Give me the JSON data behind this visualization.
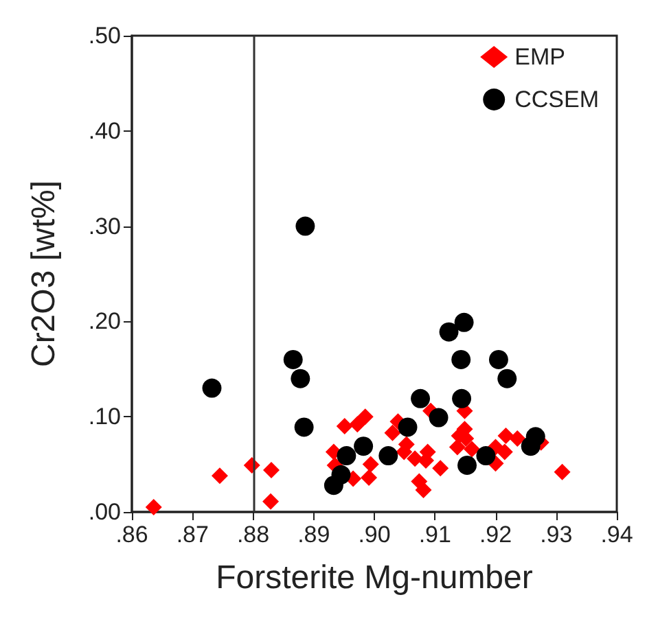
{
  "chart_data": {
    "type": "scatter",
    "xlabel": "Forsterite Mg-number",
    "ylabel": "Cr2O3 [wt%]",
    "xlim": [
      0.86,
      0.94
    ],
    "ylim": [
      0,
      0.5
    ],
    "xticks": [
      {
        "value": 0.86,
        "label": ".86"
      },
      {
        "value": 0.87,
        "label": ".87"
      },
      {
        "value": 0.88,
        "label": ".88"
      },
      {
        "value": 0.89,
        "label": ".89"
      },
      {
        "value": 0.9,
        "label": ".90"
      },
      {
        "value": 0.91,
        "label": ".91"
      },
      {
        "value": 0.92,
        "label": ".92"
      },
      {
        "value": 0.93,
        "label": ".93"
      },
      {
        "value": 0.94,
        "label": ".94"
      }
    ],
    "yticks": [
      {
        "value": 0,
        "label": ".00"
      },
      {
        "value": 0.1,
        "label": ".10"
      },
      {
        "value": 0.2,
        "label": ".20"
      },
      {
        "value": 0.3,
        "label": ".30"
      },
      {
        "value": 0.4,
        "label": ".40"
      },
      {
        "value": 0.5,
        "label": ".50"
      }
    ],
    "grid": false,
    "legend": "top right",
    "ref_lines": [
      {
        "axis": "x",
        "value": 0.88,
        "color": "#333333"
      }
    ],
    "series": [
      {
        "name": "EMP",
        "color": "#ff0000",
        "marker": "diamond",
        "x": [
          0.8636,
          0.8745,
          0.8798,
          0.883,
          0.8829,
          0.8933,
          0.8935,
          0.8951,
          0.8972,
          0.8985,
          0.8965,
          0.8991,
          0.8994,
          0.903,
          0.9039,
          0.9049,
          0.9053,
          0.9067,
          0.9074,
          0.9081,
          0.9085,
          0.9088,
          0.9093,
          0.9109,
          0.9137,
          0.914,
          0.9149,
          0.9149,
          0.9151,
          0.9161,
          0.92,
          0.92,
          0.9215,
          0.9217,
          0.9236,
          0.9275,
          0.931
        ],
        "values": [
          0.005,
          0.038,
          0.049,
          0.044,
          0.011,
          0.063,
          0.049,
          0.09,
          0.092,
          0.1,
          0.035,
          0.036,
          0.05,
          0.083,
          0.095,
          0.063,
          0.071,
          0.056,
          0.032,
          0.023,
          0.054,
          0.063,
          0.106,
          0.046,
          0.068,
          0.08,
          0.106,
          0.087,
          0.077,
          0.066,
          0.051,
          0.068,
          0.063,
          0.08,
          0.077,
          0.073,
          0.042
        ]
      },
      {
        "name": "CCSEM",
        "color": "#000000",
        "marker": "circle",
        "x": [
          0.8732,
          0.8866,
          0.8878,
          0.8886,
          0.8884,
          0.8933,
          0.8945,
          0.8954,
          0.8982,
          0.9023,
          0.9055,
          0.9076,
          0.9106,
          0.9123,
          0.9148,
          0.9143,
          0.9144,
          0.9153,
          0.9184,
          0.9205,
          0.9219,
          0.9258,
          0.9266
        ],
        "values": [
          0.13,
          0.16,
          0.14,
          0.3,
          0.089,
          0.028,
          0.039,
          0.059,
          0.069,
          0.059,
          0.089,
          0.119,
          0.099,
          0.189,
          0.199,
          0.16,
          0.119,
          0.049,
          0.059,
          0.16,
          0.14,
          0.069,
          0.079
        ]
      }
    ]
  }
}
